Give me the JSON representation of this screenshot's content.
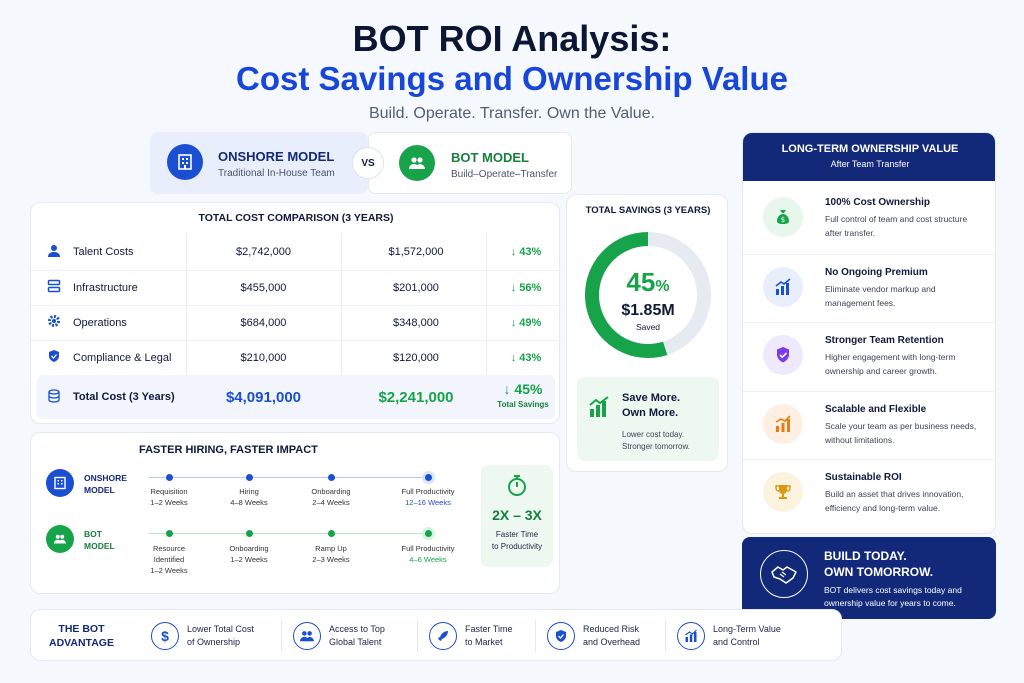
{
  "title_line1": "BOT ROI Analysis:",
  "title_line2": "Cost Savings and Ownership Value",
  "subtitle": "Build. Operate. Transfer. Own the Value.",
  "onshore_model": {
    "title": "ONSHORE MODEL",
    "subtitle": "Traditional In-House Team"
  },
  "vs_label": "VS",
  "bot_model": {
    "title": "BOT MODEL",
    "subtitle": "Build–Operate–Transfer"
  },
  "cost_table": {
    "title": "TOTAL COST COMPARISON (3 YEARS)",
    "rows": [
      {
        "label": "Talent Costs",
        "onshore": "$2,742,000",
        "bot": "$1,572,000",
        "delta": "↓ 43%",
        "icon": "person-icon"
      },
      {
        "label": "Infrastructure",
        "onshore": "$455,000",
        "bot": "$201,000",
        "delta": "↓ 56%",
        "icon": "server-icon"
      },
      {
        "label": "Operations",
        "onshore": "$684,000",
        "bot": "$348,000",
        "delta": "↓ 49%",
        "icon": "gear-icon"
      },
      {
        "label": "Compliance & Legal",
        "onshore": "$210,000",
        "bot": "$120,000",
        "delta": "↓ 43%",
        "icon": "shield-check-icon"
      }
    ],
    "total": {
      "label": "Total Cost (3 Years)",
      "onshore": "$4,091,000",
      "bot": "$2,241,000",
      "delta": "↓ 45%",
      "delta_sub": "Total Savings",
      "icon": "coins-icon"
    }
  },
  "savings": {
    "title": "TOTAL SAVINGS (3 YEARS)",
    "percent": "45",
    "percent_sign": "%",
    "percent_value": 0.45,
    "amount": "$1.85M",
    "saved_label": "Saved",
    "callout_title1": "Save More.",
    "callout_title2": "Own More.",
    "callout_sub1": "Lower cost today.",
    "callout_sub2": "Stronger tomorrow."
  },
  "long_term": {
    "title": "LONG-TERM OWNERSHIP VALUE",
    "subtitle": "After Team Transfer",
    "items": [
      {
        "title": "100% Cost Ownership",
        "desc": "Full control of team and cost structure after transfer.",
        "icon": "money-bag-icon",
        "color": "#16a34a",
        "bg": "#e7f7ec"
      },
      {
        "title": "No Ongoing Premium",
        "desc": "Eliminate vendor markup and management fees.",
        "icon": "chart-up-icon",
        "color": "#1b4fd1",
        "bg": "#e8eefc"
      },
      {
        "title": "Stronger Team Retention",
        "desc": "Higher engagement with long-term ownership and career growth.",
        "icon": "shield-check-icon",
        "color": "#7c3aed",
        "bg": "#efe9fd"
      },
      {
        "title": "Scalable and Flexible",
        "desc": "Scale your team as per business needs, without limitations.",
        "icon": "growth-bars-icon",
        "color": "#ea7a12",
        "bg": "#fdf0e2"
      },
      {
        "title": "Sustainable ROI",
        "desc": "Build an asset that drives innovation, efficiency and long-term value.",
        "icon": "trophy-icon",
        "color": "#d99a0b",
        "bg": "#fcf3df"
      }
    ],
    "banner_title1": "BUILD TODAY.",
    "banner_title2": "OWN TOMORROW.",
    "banner_desc": "BOT delivers cost savings today and ownership value for years to come."
  },
  "hiring": {
    "title": "FASTER HIRING, FASTER IMPACT",
    "onshore_label1": "ONSHORE",
    "onshore_label2": "MODEL",
    "bot_label1": "BOT",
    "bot_label2": "MODEL",
    "onshore_steps": [
      {
        "name": "Requisition",
        "time": "1–2 Weeks"
      },
      {
        "name": "Hiring",
        "time": "4–8 Weeks"
      },
      {
        "name": "Onboarding",
        "time": "2–4 Weeks"
      },
      {
        "name": "Full Productivity",
        "time": "12–16 Weeks"
      }
    ],
    "bot_steps": [
      {
        "name": "Resource Identified",
        "time": "1–2 Weeks"
      },
      {
        "name": "Onboarding",
        "time": "1–2 Weeks"
      },
      {
        "name": "Ramp Up",
        "time": "2–3 Weeks"
      },
      {
        "name": "Full Productivity",
        "time": "4–6 Weeks"
      }
    ],
    "speed_value": "2X – 3X",
    "speed_label1": "Faster Time",
    "speed_label2": "to Productivity"
  },
  "advantage": {
    "title1": "THE BOT",
    "title2": "ADVANTAGE",
    "items": [
      {
        "line1": "Lower Total Cost",
        "line2": "of Ownership",
        "icon": "dollar-icon"
      },
      {
        "line1": "Access to Top",
        "line2": "Global Talent",
        "icon": "people-icon"
      },
      {
        "line1": "Faster Time",
        "line2": "to Market",
        "icon": "rocket-icon"
      },
      {
        "line1": "Reduced Risk",
        "line2": "and Overhead",
        "icon": "shield-icon"
      },
      {
        "line1": "Long-Term Value",
        "line2": "and Control",
        "icon": "chart-up-icon"
      }
    ]
  },
  "colors": {
    "primary": "#1b4fd1",
    "navy": "#12297a",
    "green": "#16a34a"
  }
}
